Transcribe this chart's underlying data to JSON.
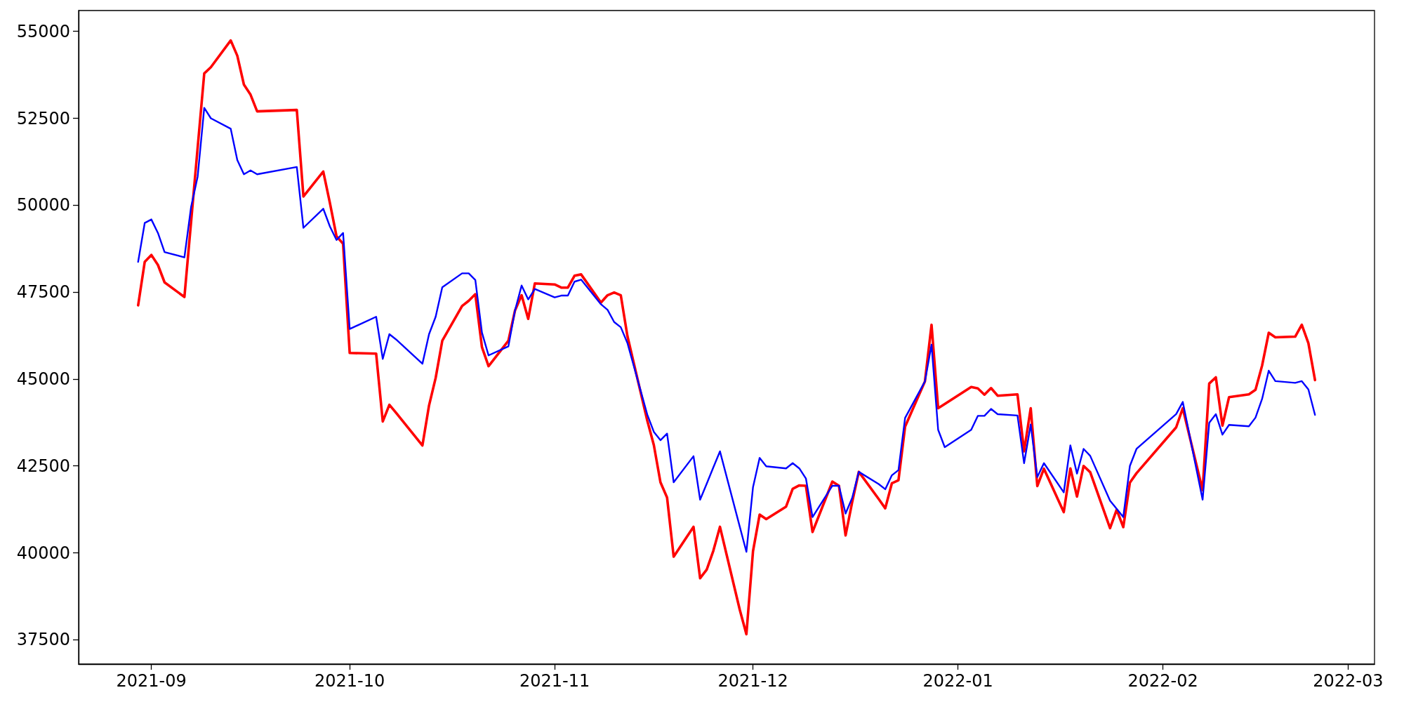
{
  "chart_data": {
    "type": "line",
    "x": [
      "2021-08-30",
      "2021-08-31",
      "2021-09-01",
      "2021-09-02",
      "2021-09-03",
      "2021-09-06",
      "2021-09-07",
      "2021-09-08",
      "2021-09-09",
      "2021-09-10",
      "2021-09-13",
      "2021-09-14",
      "2021-09-15",
      "2021-09-16",
      "2021-09-17",
      "2021-09-23",
      "2021-09-24",
      "2021-09-27",
      "2021-09-28",
      "2021-09-29",
      "2021-09-30",
      "2021-10-01",
      "2021-10-05",
      "2021-10-06",
      "2021-10-07",
      "2021-10-08",
      "2021-10-12",
      "2021-10-13",
      "2021-10-14",
      "2021-10-15",
      "2021-10-18",
      "2021-10-19",
      "2021-10-20",
      "2021-10-21",
      "2021-10-22",
      "2021-10-25",
      "2021-10-26",
      "2021-10-27",
      "2021-10-28",
      "2021-10-29",
      "2021-11-01",
      "2021-11-02",
      "2021-11-03",
      "2021-11-04",
      "2021-11-05",
      "2021-11-08",
      "2021-11-09",
      "2021-11-10",
      "2021-11-11",
      "2021-11-12",
      "2021-11-15",
      "2021-11-16",
      "2021-11-17",
      "2021-11-18",
      "2021-11-19",
      "2021-11-22",
      "2021-11-23",
      "2021-11-24",
      "2021-11-25",
      "2021-11-26",
      "2021-11-29",
      "2021-11-30",
      "2021-12-01",
      "2021-12-02",
      "2021-12-03",
      "2021-12-06",
      "2021-12-07",
      "2021-12-08",
      "2021-12-09",
      "2021-12-10",
      "2021-12-13",
      "2021-12-14",
      "2021-12-15",
      "2021-12-16",
      "2021-12-17",
      "2021-12-20",
      "2021-12-21",
      "2021-12-22",
      "2021-12-23",
      "2021-12-24",
      "2021-12-27",
      "2021-12-28",
      "2021-12-29",
      "2021-12-30",
      "2022-01-03",
      "2022-01-04",
      "2022-01-05",
      "2022-01-06",
      "2022-01-07",
      "2022-01-10",
      "2022-01-11",
      "2022-01-12",
      "2022-01-13",
      "2022-01-14",
      "2022-01-17",
      "2022-01-18",
      "2022-01-19",
      "2022-01-20",
      "2022-01-21",
      "2022-01-24",
      "2022-01-25",
      "2022-01-26",
      "2022-01-27",
      "2022-01-28",
      "2022-02-03",
      "2022-02-04",
      "2022-02-07",
      "2022-02-08",
      "2022-02-09",
      "2022-02-10",
      "2022-02-11",
      "2022-02-14",
      "2022-02-15",
      "2022-02-16",
      "2022-02-17",
      "2022-02-18",
      "2022-02-21",
      "2022-02-22",
      "2022-02-23",
      "2022-02-24"
    ],
    "series": [
      {
        "color": "#ff0000",
        "values": [
          47120,
          48370,
          48570,
          48280,
          47780,
          47360,
          49500,
          51650,
          53790,
          53970,
          54740,
          54300,
          53470,
          53180,
          52700,
          52740,
          50250,
          50970,
          50070,
          49110,
          48890,
          45750,
          45730,
          43780,
          44260,
          44030,
          43090,
          44240,
          45030,
          46100,
          47100,
          47250,
          47440,
          45920,
          45370,
          46100,
          46970,
          47410,
          46730,
          47750,
          47720,
          47630,
          47630,
          47970,
          48010,
          47200,
          47410,
          47490,
          47410,
          46240,
          43810,
          43100,
          42030,
          41590,
          39890,
          40750,
          39270,
          39520,
          40060,
          40750,
          38360,
          37660,
          40050,
          41100,
          40970,
          41330,
          41840,
          41940,
          41930,
          40600,
          42050,
          41930,
          40500,
          41460,
          42330,
          41550,
          41280,
          42000,
          42090,
          43630,
          44930,
          46560,
          44160,
          44280,
          44770,
          44730,
          44550,
          44740,
          44520,
          44560,
          42920,
          44160,
          41920,
          42420,
          41170,
          42430,
          41620,
          42500,
          42320,
          40710,
          41240,
          40740,
          42020,
          42290,
          43610,
          44160,
          41800,
          44870,
          45050,
          43660,
          44480,
          44560,
          44690,
          45390,
          46330,
          46200,
          46220,
          46560,
          46030,
          44970
        ]
      },
      {
        "color": "#0000ff",
        "values": [
          48370,
          49490,
          49590,
          49200,
          48650,
          48500,
          49940,
          50820,
          52800,
          52500,
          52200,
          51300,
          50890,
          51000,
          50890,
          51100,
          49350,
          49900,
          49390,
          49000,
          49200,
          46440,
          46790,
          45580,
          46290,
          46140,
          45440,
          46290,
          46790,
          47640,
          48040,
          48040,
          47850,
          46340,
          45680,
          45940,
          46970,
          47690,
          47290,
          47590,
          47350,
          47400,
          47400,
          47800,
          47860,
          47150,
          46990,
          46640,
          46490,
          46040,
          43980,
          43480,
          43240,
          43430,
          42030,
          42780,
          41530,
          41990,
          42460,
          42920,
          40750,
          40030,
          41890,
          42730,
          42490,
          42430,
          42580,
          42430,
          42140,
          41030,
          41930,
          41930,
          41130,
          41580,
          42330,
          41980,
          41830,
          42230,
          42380,
          43880,
          44930,
          45990,
          43540,
          43040,
          43540,
          43940,
          43940,
          44140,
          43990,
          43950,
          42580,
          43690,
          42180,
          42580,
          41740,
          43090,
          42280,
          42990,
          42790,
          41500,
          41270,
          41030,
          42500,
          42990,
          43990,
          44340,
          41530,
          43740,
          43990,
          43400,
          43680,
          43640,
          43890,
          44430,
          45240,
          44940,
          44890,
          44940,
          44700,
          43970
        ]
      }
    ],
    "xlim": [
      "2021-08-21",
      "2022-03-05"
    ],
    "xticks": [
      {
        "value": "2021-09-01",
        "label": "2021-09"
      },
      {
        "value": "2021-10-01",
        "label": "2021-10"
      },
      {
        "value": "2021-11-01",
        "label": "2021-11"
      },
      {
        "value": "2021-12-01",
        "label": "2021-12"
      },
      {
        "value": "2022-01-01",
        "label": "2022-01"
      },
      {
        "value": "2022-02-01",
        "label": "2022-02"
      },
      {
        "value": "2022-03-01",
        "label": "2022-03"
      }
    ],
    "ylim": [
      36800,
      55600
    ],
    "yticks": [
      37500,
      40000,
      42500,
      45000,
      47500,
      50000,
      52500,
      55000
    ],
    "marker": "none",
    "line_style": "solid"
  }
}
